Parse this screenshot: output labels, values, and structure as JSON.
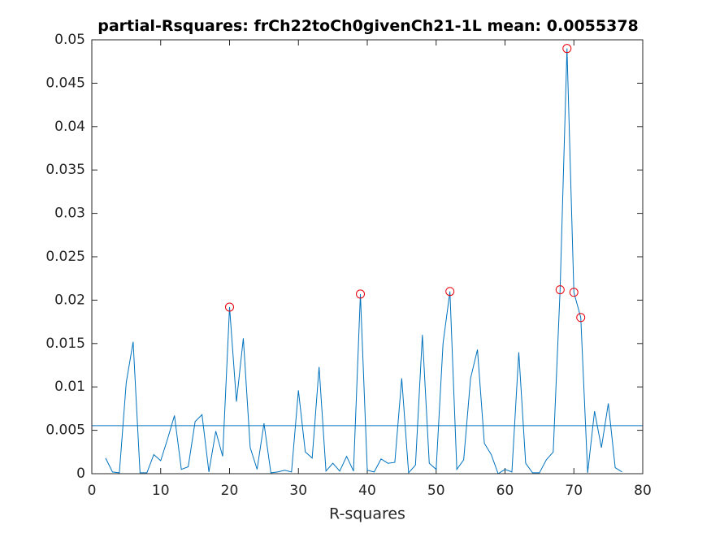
{
  "chart_data": {
    "type": "line",
    "title": "partial-Rsquares: frCh22toCh0givenCh21-1L mean:",
    "mean": 0.0055378,
    "xlabel": "R-squares",
    "xlim": [
      0,
      80
    ],
    "xticks": [
      0,
      10,
      20,
      30,
      40,
      50,
      60,
      70,
      80
    ],
    "ylim": [
      0,
      0.05
    ],
    "yticks": [
      0,
      0.005,
      0.01,
      0.015,
      0.02,
      0.025,
      0.03,
      0.035,
      0.04,
      0.045,
      0.05
    ],
    "line": {
      "color": "#0072bd",
      "x": [
        2,
        3,
        4,
        5,
        6,
        7,
        8,
        9,
        10,
        11,
        12,
        13,
        14,
        15,
        16,
        17,
        18,
        19,
        20,
        21,
        22,
        23,
        24,
        25,
        26,
        27,
        28,
        29,
        30,
        31,
        32,
        33,
        34,
        35,
        36,
        37,
        38,
        39,
        40,
        41,
        42,
        43,
        44,
        45,
        46,
        47,
        48,
        49,
        50,
        51,
        52,
        53,
        54,
        55,
        56,
        57,
        58,
        59,
        60,
        61,
        62,
        63,
        64,
        65,
        66,
        67,
        68,
        69,
        70,
        71,
        72,
        73,
        74,
        75,
        76,
        77
      ],
      "values": [
        0.0018,
        0.0002,
        0.0001,
        0.0105,
        0.0152,
        0.0001,
        0.0001,
        0.0022,
        0.0015,
        0.004,
        0.0067,
        0.0005,
        0.0008,
        0.006,
        0.0068,
        0.0002,
        0.0049,
        0.002,
        0.0192,
        0.0083,
        0.0156,
        0.003,
        0.0005,
        0.0058,
        0.0001,
        0.0002,
        0.0004,
        0.0002,
        0.0096,
        0.0025,
        0.0018,
        0.0123,
        0.0003,
        0.0012,
        0.0003,
        0.002,
        0.0003,
        0.0207,
        0.0004,
        0.0002,
        0.0017,
        0.0012,
        0.0013,
        0.011,
        0.0001,
        0.001,
        0.016,
        0.0012,
        0.0005,
        0.015,
        0.021,
        0.0005,
        0.0016,
        0.011,
        0.0143,
        0.0035,
        0.0022,
        0.0,
        0.0005,
        0.0002,
        0.014,
        0.0012,
        0.0001,
        0.0001,
        0.0016,
        0.0025,
        0.0212,
        0.049,
        0.0209,
        0.018,
        0.0001,
        0.0072,
        0.003,
        0.0081,
        0.0007,
        0.0002
      ]
    },
    "peaks": {
      "color": "#e8000b",
      "x": [
        20,
        39,
        52,
        68,
        69,
        70,
        71
      ],
      "values": [
        0.0192,
        0.0207,
        0.021,
        0.0212,
        0.049,
        0.0209,
        0.018
      ]
    }
  }
}
